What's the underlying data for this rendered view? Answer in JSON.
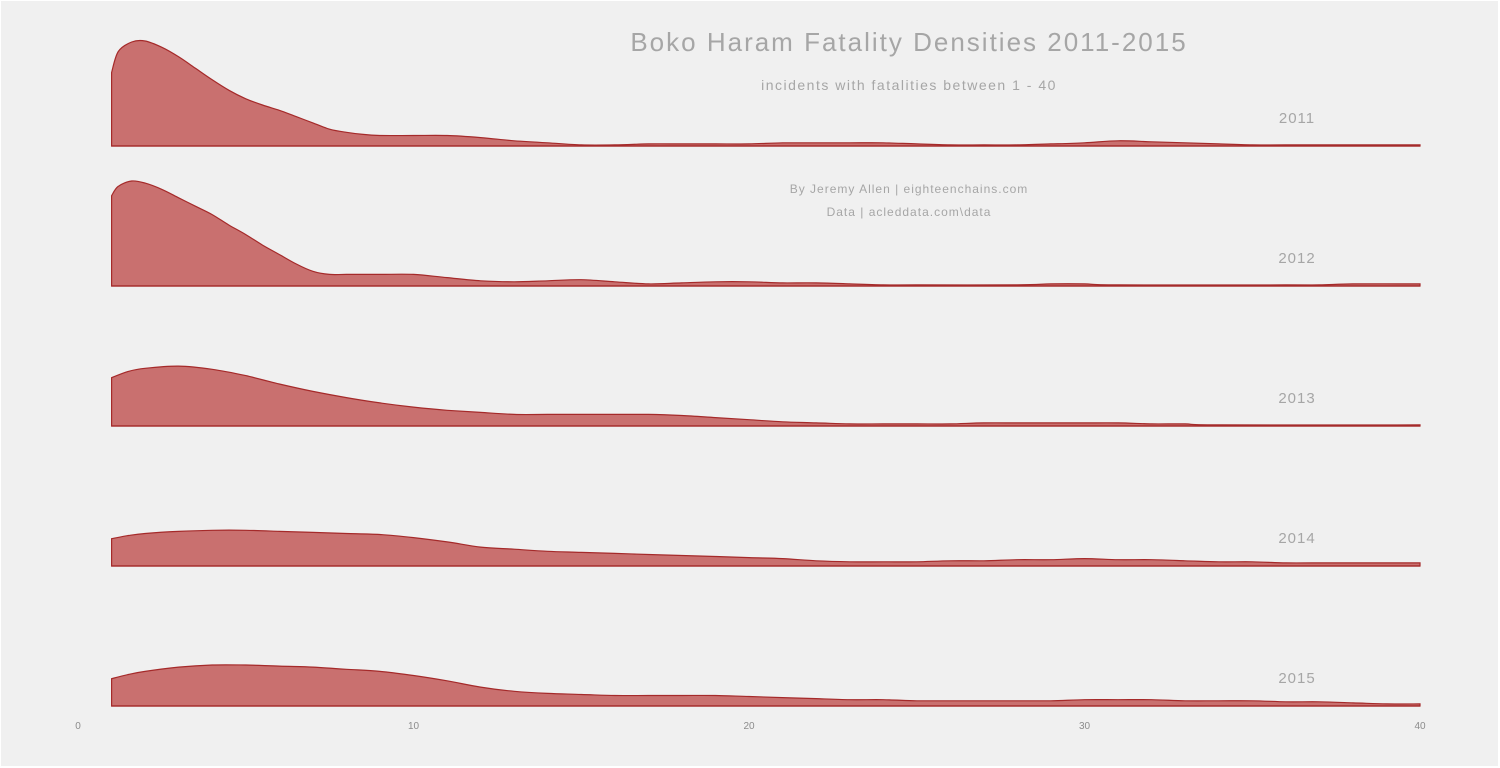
{
  "chart_data": {
    "type": "area",
    "title": "Boko Haram Fatality Densities 2011-2015",
    "subtitle": "incidents with fatalities between 1 - 40",
    "credits": [
      "By Jeremy Allen | eighteenchains.com",
      "Data | acleddata.com\\data"
    ],
    "xlim": [
      0,
      40
    ],
    "x_ticks": [
      "0",
      "10",
      "20",
      "30",
      "40"
    ],
    "x_tick_values": [
      0,
      10,
      20,
      30,
      40
    ],
    "grid": false,
    "colors": {
      "fill": "#c9706f",
      "line": "#a52a2a",
      "text": "#a6a6a6"
    },
    "series": [
      {
        "name": "2011",
        "points": [
          [
            1.0,
            0.7
          ],
          [
            1.2,
            0.9
          ],
          [
            1.6,
            0.99
          ],
          [
            2.0,
            1.0
          ],
          [
            2.5,
            0.94
          ],
          [
            3.0,
            0.85
          ],
          [
            3.5,
            0.74
          ],
          [
            4.0,
            0.63
          ],
          [
            4.5,
            0.53
          ],
          [
            5.0,
            0.45
          ],
          [
            5.5,
            0.39
          ],
          [
            6.0,
            0.34
          ],
          [
            6.5,
            0.28
          ],
          [
            7.0,
            0.22
          ],
          [
            7.5,
            0.16
          ],
          [
            8.0,
            0.13
          ],
          [
            8.5,
            0.11
          ],
          [
            9.0,
            0.1
          ],
          [
            10.0,
            0.1
          ],
          [
            11.0,
            0.1
          ],
          [
            12.0,
            0.08
          ],
          [
            13.0,
            0.05
          ],
          [
            14.0,
            0.03
          ],
          [
            15.0,
            0.01
          ],
          [
            16.0,
            0.01
          ],
          [
            17.0,
            0.02
          ],
          [
            18.0,
            0.02
          ],
          [
            19.0,
            0.02
          ],
          [
            20.0,
            0.02
          ],
          [
            21.0,
            0.03
          ],
          [
            22.0,
            0.03
          ],
          [
            23.0,
            0.03
          ],
          [
            24.0,
            0.03
          ],
          [
            25.0,
            0.02
          ],
          [
            26.0,
            0.01
          ],
          [
            27.0,
            0.01
          ],
          [
            28.0,
            0.01
          ],
          [
            29.0,
            0.02
          ],
          [
            30.0,
            0.03
          ],
          [
            31.0,
            0.05
          ],
          [
            32.0,
            0.04
          ],
          [
            33.0,
            0.03
          ],
          [
            34.0,
            0.02
          ],
          [
            35.0,
            0.01
          ],
          [
            36.0,
            0.01
          ],
          [
            40.0,
            0.01
          ]
        ]
      },
      {
        "name": "2012",
        "points": [
          [
            1.0,
            0.86
          ],
          [
            1.2,
            0.95
          ],
          [
            1.6,
            1.0
          ],
          [
            2.0,
            0.98
          ],
          [
            2.5,
            0.92
          ],
          [
            3.0,
            0.84
          ],
          [
            3.5,
            0.76
          ],
          [
            4.0,
            0.68
          ],
          [
            4.5,
            0.58
          ],
          [
            5.0,
            0.49
          ],
          [
            5.5,
            0.39
          ],
          [
            6.0,
            0.3
          ],
          [
            6.5,
            0.21
          ],
          [
            7.0,
            0.14
          ],
          [
            7.5,
            0.11
          ],
          [
            8.0,
            0.11
          ],
          [
            9.0,
            0.11
          ],
          [
            10.0,
            0.11
          ],
          [
            11.0,
            0.08
          ],
          [
            12.0,
            0.05
          ],
          [
            13.0,
            0.04
          ],
          [
            14.0,
            0.05
          ],
          [
            15.0,
            0.06
          ],
          [
            16.0,
            0.04
          ],
          [
            17.0,
            0.02
          ],
          [
            18.0,
            0.03
          ],
          [
            19.0,
            0.04
          ],
          [
            20.0,
            0.04
          ],
          [
            21.0,
            0.03
          ],
          [
            22.0,
            0.03
          ],
          [
            23.0,
            0.02
          ],
          [
            24.0,
            0.01
          ],
          [
            25.0,
            0.01
          ],
          [
            28.0,
            0.01
          ],
          [
            29.0,
            0.02
          ],
          [
            30.0,
            0.02
          ],
          [
            31.0,
            0.01
          ],
          [
            36.0,
            0.01
          ],
          [
            37.0,
            0.01
          ],
          [
            38.0,
            0.02
          ],
          [
            40.0,
            0.02
          ]
        ]
      },
      {
        "name": "2013",
        "points": [
          [
            1.0,
            0.46
          ],
          [
            1.5,
            0.52
          ],
          [
            2.0,
            0.55
          ],
          [
            3.0,
            0.57
          ],
          [
            4.0,
            0.54
          ],
          [
            5.0,
            0.48
          ],
          [
            6.0,
            0.4
          ],
          [
            7.0,
            0.33
          ],
          [
            8.0,
            0.27
          ],
          [
            9.0,
            0.22
          ],
          [
            10.0,
            0.18
          ],
          [
            11.0,
            0.15
          ],
          [
            12.0,
            0.13
          ],
          [
            13.0,
            0.11
          ],
          [
            14.0,
            0.11
          ],
          [
            15.0,
            0.11
          ],
          [
            16.0,
            0.11
          ],
          [
            17.0,
            0.11
          ],
          [
            18.0,
            0.1
          ],
          [
            19.0,
            0.08
          ],
          [
            20.0,
            0.06
          ],
          [
            21.0,
            0.04
          ],
          [
            22.0,
            0.03
          ],
          [
            23.0,
            0.02
          ],
          [
            24.0,
            0.02
          ],
          [
            25.0,
            0.02
          ],
          [
            26.0,
            0.02
          ],
          [
            27.0,
            0.03
          ],
          [
            28.0,
            0.03
          ],
          [
            29.0,
            0.03
          ],
          [
            30.0,
            0.03
          ],
          [
            31.0,
            0.03
          ],
          [
            32.0,
            0.02
          ],
          [
            33.0,
            0.02
          ],
          [
            34.0,
            0.01
          ],
          [
            40.0,
            0.01
          ]
        ]
      },
      {
        "name": "2014",
        "points": [
          [
            1.0,
            0.26
          ],
          [
            1.5,
            0.29
          ],
          [
            2.0,
            0.31
          ],
          [
            3.0,
            0.33
          ],
          [
            4.0,
            0.34
          ],
          [
            5.0,
            0.34
          ],
          [
            6.0,
            0.33
          ],
          [
            7.0,
            0.32
          ],
          [
            8.0,
            0.31
          ],
          [
            9.0,
            0.3
          ],
          [
            10.0,
            0.27
          ],
          [
            11.0,
            0.23
          ],
          [
            12.0,
            0.18
          ],
          [
            13.0,
            0.16
          ],
          [
            14.0,
            0.14
          ],
          [
            15.0,
            0.13
          ],
          [
            16.0,
            0.12
          ],
          [
            17.0,
            0.11
          ],
          [
            18.0,
            0.1
          ],
          [
            19.0,
            0.09
          ],
          [
            20.0,
            0.08
          ],
          [
            21.0,
            0.07
          ],
          [
            22.0,
            0.05
          ],
          [
            23.0,
            0.04
          ],
          [
            24.0,
            0.04
          ],
          [
            25.0,
            0.04
          ],
          [
            26.0,
            0.05
          ],
          [
            27.0,
            0.05
          ],
          [
            28.0,
            0.06
          ],
          [
            29.0,
            0.06
          ],
          [
            30.0,
            0.07
          ],
          [
            31.0,
            0.06
          ],
          [
            32.0,
            0.06
          ],
          [
            33.0,
            0.05
          ],
          [
            34.0,
            0.04
          ],
          [
            35.0,
            0.04
          ],
          [
            36.0,
            0.03
          ],
          [
            37.0,
            0.03
          ],
          [
            38.0,
            0.03
          ],
          [
            40.0,
            0.03
          ]
        ]
      },
      {
        "name": "2015",
        "points": [
          [
            1.0,
            0.26
          ],
          [
            1.5,
            0.3
          ],
          [
            2.0,
            0.33
          ],
          [
            3.0,
            0.37
          ],
          [
            4.0,
            0.39
          ],
          [
            5.0,
            0.39
          ],
          [
            6.0,
            0.38
          ],
          [
            7.0,
            0.37
          ],
          [
            8.0,
            0.35
          ],
          [
            9.0,
            0.33
          ],
          [
            10.0,
            0.29
          ],
          [
            11.0,
            0.24
          ],
          [
            12.0,
            0.18
          ],
          [
            13.0,
            0.14
          ],
          [
            14.0,
            0.12
          ],
          [
            15.0,
            0.11
          ],
          [
            16.0,
            0.1
          ],
          [
            17.0,
            0.1
          ],
          [
            18.0,
            0.1
          ],
          [
            19.0,
            0.1
          ],
          [
            20.0,
            0.09
          ],
          [
            21.0,
            0.08
          ],
          [
            22.0,
            0.07
          ],
          [
            23.0,
            0.06
          ],
          [
            24.0,
            0.06
          ],
          [
            25.0,
            0.05
          ],
          [
            26.0,
            0.05
          ],
          [
            27.0,
            0.05
          ],
          [
            28.0,
            0.05
          ],
          [
            29.0,
            0.05
          ],
          [
            30.0,
            0.06
          ],
          [
            31.0,
            0.06
          ],
          [
            32.0,
            0.06
          ],
          [
            33.0,
            0.05
          ],
          [
            34.0,
            0.05
          ],
          [
            35.0,
            0.05
          ],
          [
            36.0,
            0.04
          ],
          [
            37.0,
            0.04
          ],
          [
            38.0,
            0.03
          ],
          [
            39.0,
            0.02
          ],
          [
            40.0,
            0.02
          ]
        ]
      }
    ]
  }
}
